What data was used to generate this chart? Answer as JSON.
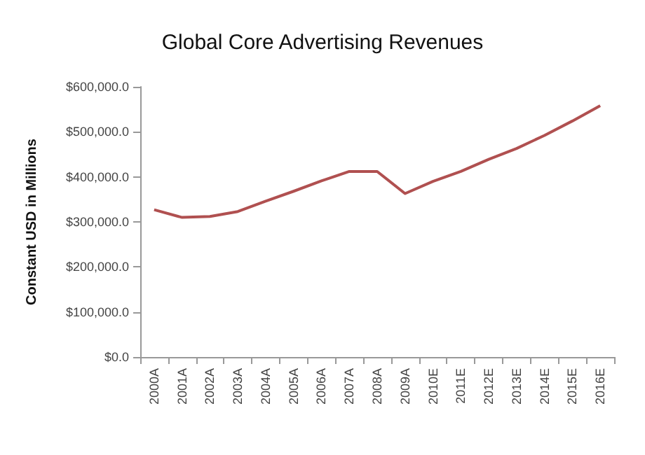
{
  "chart_data": {
    "type": "line",
    "title": "Global Core Advertising Revenues",
    "ylabel": "Constant USD in Millions",
    "categories": [
      "2000A",
      "2001A",
      "2002A",
      "2003A",
      "2004A",
      "2005A",
      "2006A",
      "2007A",
      "2008A",
      "2009A",
      "2010E",
      "2011E",
      "2012E",
      "2013E",
      "2014E",
      "2015E",
      "2016E"
    ],
    "series": [
      {
        "color": "#b05050",
        "values": [
          327000,
          310000,
          312000,
          323000,
          346000,
          368000,
          391000,
          412000,
          412000,
          363000,
          390000,
          412000,
          439000,
          463000,
          492000,
          524000,
          558000
        ]
      }
    ],
    "ylim": [
      0,
      600000
    ],
    "yticks": [
      {
        "value": 0,
        "label": "$0.0"
      },
      {
        "value": 100000,
        "label": "$100,000.0"
      },
      {
        "value": 200000,
        "label": "$200,000.0"
      },
      {
        "value": 300000,
        "label": "$300,000.0"
      },
      {
        "value": 400000,
        "label": "$400,000.0"
      },
      {
        "value": 500000,
        "label": "$500,000.0"
      },
      {
        "value": 600000,
        "label": "$600,000.0"
      }
    ],
    "marker": "none",
    "line_style": "solid"
  }
}
